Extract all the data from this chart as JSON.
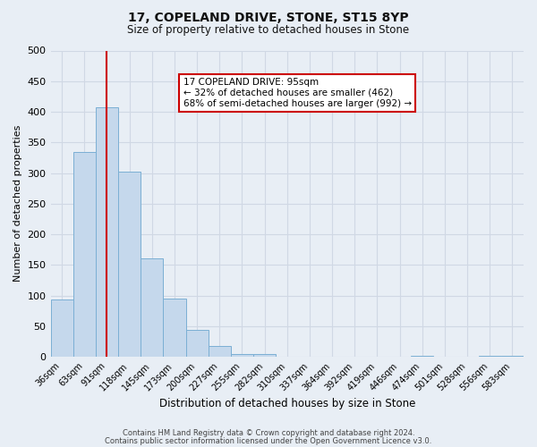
{
  "title": "17, COPELAND DRIVE, STONE, ST15 8YP",
  "subtitle": "Size of property relative to detached houses in Stone",
  "xlabel": "Distribution of detached houses by size in Stone",
  "ylabel": "Number of detached properties",
  "footnote1": "Contains HM Land Registry data © Crown copyright and database right 2024.",
  "footnote2": "Contains public sector information licensed under the Open Government Licence v3.0.",
  "bar_labels": [
    "36sqm",
    "63sqm",
    "91sqm",
    "118sqm",
    "145sqm",
    "173sqm",
    "200sqm",
    "227sqm",
    "255sqm",
    "282sqm",
    "310sqm",
    "337sqm",
    "364sqm",
    "392sqm",
    "419sqm",
    "446sqm",
    "474sqm",
    "501sqm",
    "528sqm",
    "556sqm",
    "583sqm"
  ],
  "bar_values": [
    93,
    335,
    407,
    302,
    160,
    95,
    44,
    18,
    5,
    4,
    0,
    0,
    0,
    0,
    0,
    0,
    2,
    0,
    0,
    2,
    2
  ],
  "bar_color": "#c5d8ec",
  "bar_edge_color": "#7bafd4",
  "ylim": [
    0,
    500
  ],
  "yticks": [
    0,
    50,
    100,
    150,
    200,
    250,
    300,
    350,
    400,
    450,
    500
  ],
  "vline_x_index": 2,
  "vline_color": "#cc0000",
  "box_text_line1": "17 COPELAND DRIVE: 95sqm",
  "box_text_line2": "← 32% of detached houses are smaller (462)",
  "box_text_line3": "68% of semi-detached houses are larger (992) →",
  "box_color": "white",
  "box_edge_color": "#cc0000",
  "background_color": "#e8eef5",
  "grid_color": "#d0d8e4",
  "title_fontsize": 10,
  "subtitle_fontsize": 8.5,
  "ylabel_fontsize": 8,
  "xlabel_fontsize": 8.5
}
